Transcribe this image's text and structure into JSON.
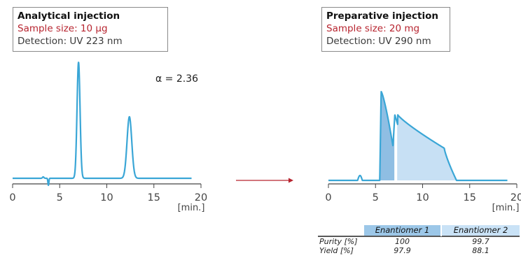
{
  "panels": {
    "left": {
      "title": "Analytical injection",
      "sample": "Sample size: 10 µg",
      "detection": "Detection: UV 223 nm",
      "alpha": "α = 2.36"
    },
    "right": {
      "title": "Preparative injection",
      "sample": "Sample size: 20 mg",
      "detection": "Detection: UV 290 nm"
    }
  },
  "colors": {
    "trace": "#3aa6d6",
    "fill_enantiomer_1": "#8fbee3",
    "fill_enantiomer_2": "#c7e0f4",
    "header_enantiomer_1": "#9cc7e8",
    "header_enantiomer_2": "#c9e2f6",
    "arrow": "#b7242f",
    "sample_text": "#b7242f"
  },
  "chart_data": [
    {
      "type": "line",
      "name": "analytical",
      "x_unit": "[min.]",
      "xlim": [
        0,
        20
      ],
      "x_ticks": [
        0,
        5,
        10,
        15,
        20
      ],
      "peaks": [
        {
          "time": 7.0,
          "height": 1.0
        },
        {
          "time": 12.4,
          "height": 0.53
        }
      ],
      "baseline_dip_time": 3.8
    },
    {
      "type": "line",
      "name": "preparative",
      "x_unit": "[min.]",
      "xlim": [
        0,
        20
      ],
      "x_ticks": [
        0,
        5,
        10,
        15,
        20
      ],
      "fractions": [
        {
          "name": "Enantiomer 1",
          "start": 5.5,
          "end": 7.0
        },
        {
          "name": "Enantiomer 2",
          "start": 7.3,
          "end": 13.5
        }
      ]
    }
  ],
  "table": {
    "headers": [
      "Enantiomer 1",
      "Enantiomer 2"
    ],
    "rows": [
      {
        "label": "Purity [%]",
        "values": [
          "100",
          "99.7"
        ]
      },
      {
        "label": "Yield [%]",
        "values": [
          "97.9",
          "88.1"
        ]
      }
    ]
  }
}
